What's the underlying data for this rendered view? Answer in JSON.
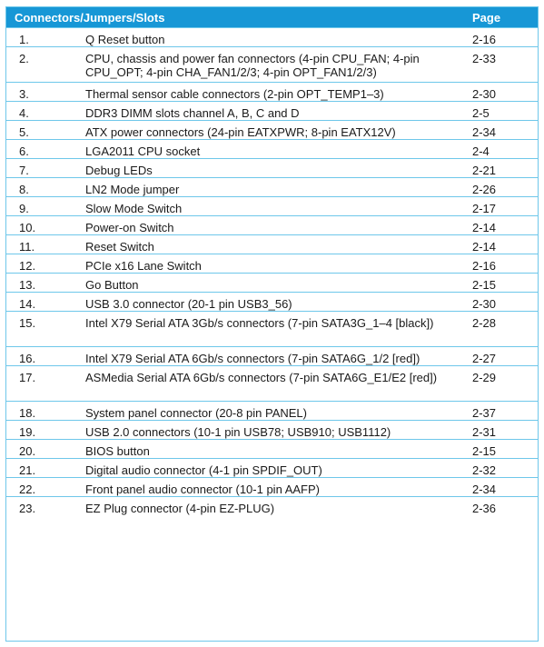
{
  "table": {
    "headers": {
      "item": "Connectors/Jumpers/Slots",
      "page": "Page"
    },
    "rows": [
      {
        "num": "1.",
        "desc": "Q Reset button",
        "page": "2-16"
      },
      {
        "num": "2.",
        "desc": "CPU, chassis and power fan connectors (4-pin CPU_FAN; 4-pin CPU_OPT; 4-pin CHA_FAN1/2/3; 4-pin OPT_FAN1/2/3)",
        "page": "2-33"
      },
      {
        "num": "3.",
        "desc": "Thermal sensor cable connectors (2-pin OPT_TEMP1–3)",
        "page": "2-30"
      },
      {
        "num": "4.",
        "desc": "DDR3 DIMM slots channel A, B, C and D",
        "page": "2-5"
      },
      {
        "num": "5.",
        "desc": "ATX power connectors (24-pin EATXPWR; 8-pin EATX12V)",
        "page": "2-34"
      },
      {
        "num": "6.",
        "desc": "LGA2011 CPU socket",
        "page": "2-4"
      },
      {
        "num": "7.",
        "desc": "Debug LEDs",
        "page": "2-21"
      },
      {
        "num": "8.",
        "desc": "LN2 Mode jumper",
        "page": "2-26"
      },
      {
        "num": "9.",
        "desc": "Slow Mode Switch",
        "page": "2-17"
      },
      {
        "num": "10.",
        "desc": "Power-on Switch",
        "page": "2-14"
      },
      {
        "num": "11.",
        "desc": "Reset Switch",
        "page": "2-14"
      },
      {
        "num": "12.",
        "desc": "PCIe x16 Lane Switch",
        "page": "2-16"
      },
      {
        "num": "13.",
        "desc": "Go Button",
        "page": "2-15"
      },
      {
        "num": "14.",
        "desc": "USB 3.0 connector (20-1 pin USB3_56)",
        "page": "2-30"
      },
      {
        "num": "15.",
        "desc": "Intel X79 Serial ATA 3Gb/s connectors (7-pin SATA3G_1–4 [black])",
        "page": "2-28"
      },
      {
        "num": "16.",
        "desc": "Intel X79 Serial ATA 6Gb/s connectors (7-pin SATA6G_1/2 [red])",
        "page": "2-27"
      },
      {
        "num": "17.",
        "desc": "ASMedia Serial ATA 6Gb/s connectors (7-pin SATA6G_E1/E2 [red])",
        "page": "2-29"
      },
      {
        "num": "18.",
        "desc": "System panel connector (20-8 pin PANEL)",
        "page": "2-37"
      },
      {
        "num": "19.",
        "desc": "USB 2.0 connectors (10-1 pin USB78; USB910; USB1112)",
        "page": "2-31"
      },
      {
        "num": "20.",
        "desc": "BIOS button",
        "page": "2-15"
      },
      {
        "num": "21.",
        "desc": "Digital audio connector (4-1 pin SPDIF_OUT)",
        "page": "2-32"
      },
      {
        "num": "22.",
        "desc": "Front panel audio connector (10-1 pin AAFP)",
        "page": "2-34"
      },
      {
        "num": "23.",
        "desc": "EZ Plug connector (4-pin EZ-PLUG)",
        "page": "2-36"
      }
    ]
  },
  "colors": {
    "header_bg": "#1797d6",
    "border": "#6ec7ea"
  }
}
